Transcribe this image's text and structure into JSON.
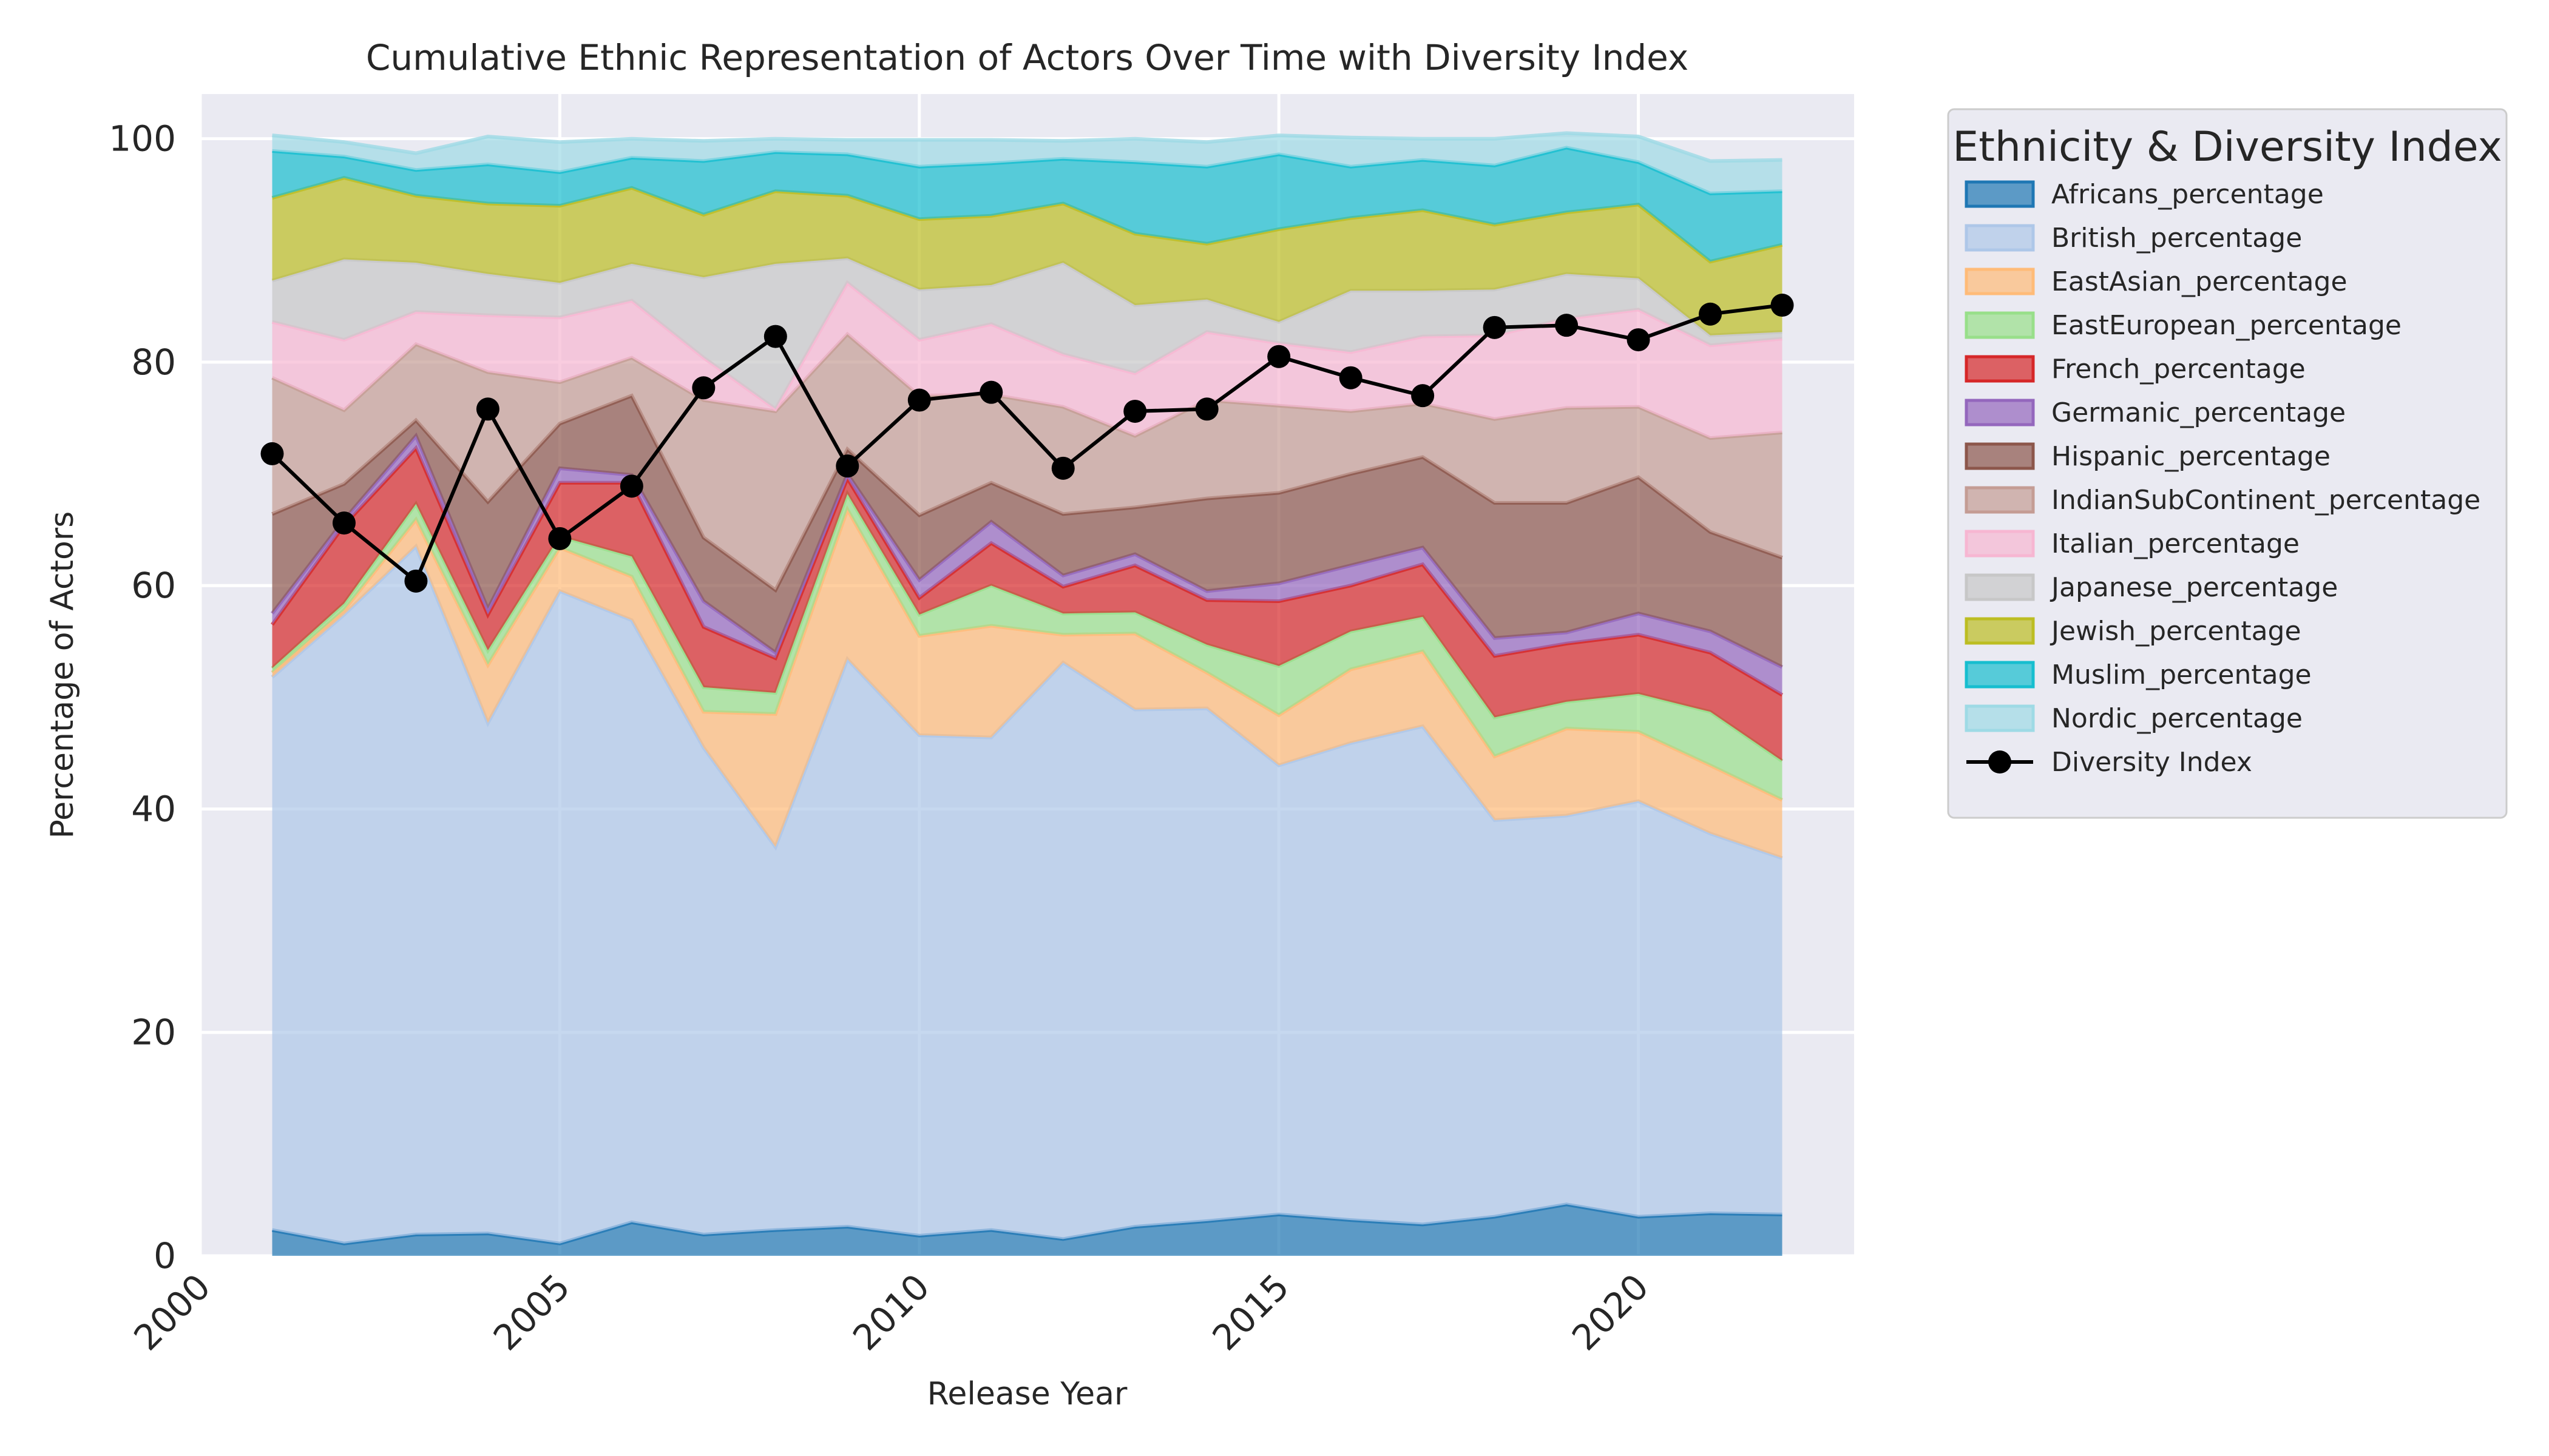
{
  "chart_data": {
    "type": "area",
    "title": "Cumulative Ethnic Representation of Actors Over Time with Diversity Index",
    "xlabel": "Release Year",
    "ylabel": "Percentage of Actors",
    "xlim": [
      2000,
      2023
    ],
    "ylim": [
      0,
      104
    ],
    "x_ticks": [
      2000,
      2005,
      2010,
      2015,
      2020
    ],
    "y_ticks": [
      0,
      20,
      40,
      60,
      80,
      100
    ],
    "grid": true,
    "legend_title": "Ethnicity & Diversity Index",
    "legend_position": "outside-right",
    "x": [
      2001,
      2002,
      2003,
      2004,
      2005,
      2006,
      2007,
      2008,
      2009,
      2010,
      2011,
      2012,
      2013,
      2014,
      2015,
      2016,
      2017,
      2018,
      2019,
      2020,
      2021,
      2022
    ],
    "series": [
      {
        "name": "Africans_percentage",
        "color": "#1f77b4",
        "values": [
          2.3,
          1.1,
          1.9,
          2.0,
          1.1,
          3.0,
          1.9,
          2.3,
          2.6,
          1.8,
          2.3,
          1.5,
          2.6,
          3.1,
          3.7,
          3.2,
          2.8,
          3.5,
          4.6,
          3.5,
          3.8,
          3.7
        ]
      },
      {
        "name": "British_percentage",
        "color": "#aec7e8",
        "values": [
          49.5,
          56.3,
          61.6,
          45.7,
          58.4,
          53.9,
          43.6,
          34.3,
          50.8,
          44.8,
          44.1,
          51.6,
          46.3,
          45.9,
          40.2,
          42.7,
          44.6,
          35.5,
          34.8,
          37.2,
          34.0,
          31.9
        ]
      },
      {
        "name": "EastAsian_percentage",
        "color": "#ffbb78",
        "values": [
          0.4,
          0.4,
          2.4,
          5.2,
          3.9,
          3.9,
          3.2,
          11.9,
          13.4,
          8.9,
          10.0,
          2.5,
          6.8,
          3.2,
          4.5,
          6.6,
          6.7,
          5.7,
          7.8,
          6.2,
          6.1,
          5.2
        ]
      },
      {
        "name": "EastEuropean_percentage",
        "color": "#98df8a",
        "values": [
          0.4,
          0.6,
          1.4,
          1.3,
          1.0,
          1.8,
          2.2,
          1.9,
          1.4,
          1.9,
          3.6,
          1.9,
          1.9,
          2.5,
          4.4,
          3.4,
          3.1,
          3.5,
          2.4,
          3.4,
          4.8,
          3.5
        ]
      },
      {
        "name": "French_percentage",
        "color": "#d62728",
        "values": [
          3.9,
          7.0,
          5.0,
          3.2,
          4.8,
          6.6,
          5.4,
          3.1,
          1.4,
          1.5,
          3.8,
          2.4,
          4.2,
          4.0,
          5.8,
          4.1,
          4.7,
          5.5,
          5.2,
          5.3,
          5.3,
          5.9
        ]
      },
      {
        "name": "Germanic_percentage",
        "color": "#9467bd",
        "values": [
          1.0,
          0.5,
          1.1,
          0.5,
          1.3,
          0.7,
          2.3,
          0.5,
          0.4,
          1.6,
          1.9,
          1.0,
          1.0,
          0.8,
          1.6,
          1.8,
          1.5,
          1.6,
          1.0,
          1.9,
          1.9,
          2.5
        ]
      },
      {
        "name": "Hispanic_percentage",
        "color": "#8c564b",
        "values": [
          8.9,
          3.2,
          1.4,
          9.6,
          4.0,
          7.1,
          5.7,
          5.6,
          2.2,
          5.8,
          3.5,
          5.5,
          4.2,
          8.3,
          8.1,
          8.2,
          8.1,
          12.1,
          11.6,
          12.2,
          8.9,
          9.8
        ]
      },
      {
        "name": "IndianSubContinent_percentage",
        "color": "#c49c94",
        "values": [
          12.2,
          6.6,
          6.8,
          11.6,
          3.7,
          3.4,
          12.3,
          16.0,
          10.3,
          10.7,
          7.9,
          9.6,
          6.4,
          8.8,
          7.8,
          5.6,
          4.8,
          7.5,
          8.5,
          6.3,
          8.4,
          11.2
        ]
      },
      {
        "name": "Italian_percentage",
        "color": "#f7b6d2",
        "values": [
          5.0,
          6.3,
          2.9,
          5.1,
          5.8,
          5.1,
          3.8,
          0.2,
          4.6,
          5.0,
          6.3,
          4.7,
          5.6,
          6.1,
          5.6,
          5.3,
          6.0,
          7.5,
          8.0,
          8.7,
          8.3,
          8.4
        ]
      },
      {
        "name": "Japanese_percentage",
        "color": "#c7c7c7",
        "values": [
          3.7,
          7.2,
          4.4,
          3.7,
          3.1,
          3.3,
          7.2,
          13.0,
          2.2,
          4.5,
          3.5,
          8.2,
          6.1,
          2.9,
          1.9,
          5.5,
          4.1,
          4.1,
          4.0,
          2.8,
          0.9,
          0.6
        ]
      },
      {
        "name": "Jewish_percentage",
        "color": "#bcbd22",
        "values": [
          7.4,
          7.3,
          6.0,
          6.3,
          6.9,
          6.8,
          5.6,
          6.5,
          5.6,
          6.3,
          6.2,
          5.3,
          6.4,
          5.0,
          8.3,
          6.5,
          7.2,
          5.8,
          5.5,
          6.6,
          6.6,
          7.8
        ]
      },
      {
        "name": "Muslim_percentage",
        "color": "#17becf",
        "values": [
          4.2,
          1.9,
          2.3,
          3.5,
          3.0,
          2.7,
          4.8,
          3.5,
          3.7,
          4.7,
          4.7,
          4.0,
          6.4,
          6.9,
          6.7,
          4.6,
          4.5,
          5.3,
          5.8,
          3.8,
          6.1,
          4.8
        ]
      },
      {
        "name": "Nordic_percentage",
        "color": "#9edae5",
        "values": [
          1.4,
          1.3,
          1.5,
          2.5,
          2.7,
          1.7,
          1.8,
          1.2,
          1.3,
          2.4,
          2.1,
          1.6,
          2.1,
          2.2,
          1.7,
          2.6,
          1.9,
          2.4,
          1.3,
          2.3,
          2.9,
          2.8
        ]
      }
    ],
    "diversity_index": {
      "name": "Diversity Index",
      "color": "#000000",
      "values": [
        71.8,
        65.6,
        60.4,
        75.8,
        64.2,
        68.9,
        77.7,
        82.3,
        70.7,
        76.6,
        77.3,
        70.5,
        75.6,
        75.8,
        80.5,
        78.6,
        77.0,
        83.1,
        83.3,
        82.0,
        84.3,
        85.1
      ]
    }
  }
}
